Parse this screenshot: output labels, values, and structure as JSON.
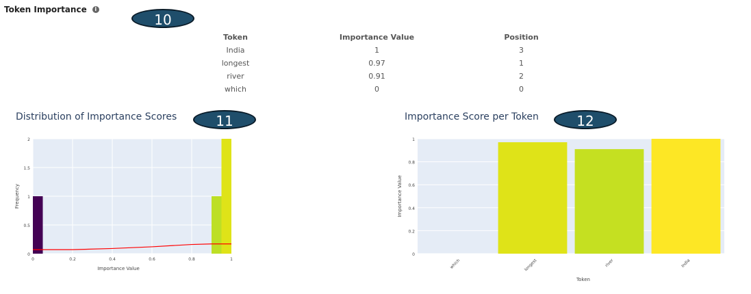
{
  "section": {
    "title": "Token Importance",
    "info_icon": "info-icon"
  },
  "badges": [
    "10",
    "11",
    "12"
  ],
  "table": {
    "headers": [
      "Token",
      "Importance Value",
      "Position"
    ],
    "rows": [
      [
        "India",
        "1",
        "3"
      ],
      [
        "longest",
        "0.97",
        "1"
      ],
      [
        "river",
        "0.91",
        "2"
      ],
      [
        "which",
        "0",
        "0"
      ]
    ]
  },
  "colors": {
    "plot_bg": "#e5ecf6",
    "kde": "#ff0000",
    "title": "#2a3f5f"
  },
  "chart_data": [
    {
      "type": "histogram",
      "title": "Distribution of Importance Scores",
      "xlabel": "Importance Value",
      "ylabel": "Frequency",
      "xlim": [
        0,
        1
      ],
      "ylim": [
        0,
        2
      ],
      "xticks": [
        "0",
        "0.2",
        "0.4",
        "0.6",
        "0.8",
        "1"
      ],
      "yticks": [
        "0",
        "0.5",
        "1",
        "1.5",
        "2"
      ],
      "bins": [
        {
          "x0": 0.0,
          "x1": 0.05,
          "count": 1,
          "color": "#440154"
        },
        {
          "x0": 0.9,
          "x1": 0.95,
          "count": 1,
          "color": "#bddf26"
        },
        {
          "x0": 0.95,
          "x1": 1.0,
          "count": 2,
          "color": "#dfe318"
        }
      ],
      "kde_line": {
        "x": [
          0,
          0.2,
          0.4,
          0.6,
          0.8,
          0.9,
          1
        ],
        "y": [
          0.07,
          0.07,
          0.09,
          0.12,
          0.16,
          0.17,
          0.17
        ],
        "color": "#ff0000"
      }
    },
    {
      "type": "bar",
      "title": "Importance Score per Token",
      "xlabel": "Token",
      "ylabel": "Importance Value",
      "categories": [
        "which",
        "longest",
        "river",
        "India"
      ],
      "values": [
        0,
        0.97,
        0.91,
        1
      ],
      "colors": [
        "#440154",
        "#dfe318",
        "#c5e021",
        "#fde725"
      ],
      "ylim": [
        0,
        1
      ],
      "yticks": [
        "0",
        "0.2",
        "0.4",
        "0.6",
        "0.8",
        "1"
      ]
    }
  ]
}
